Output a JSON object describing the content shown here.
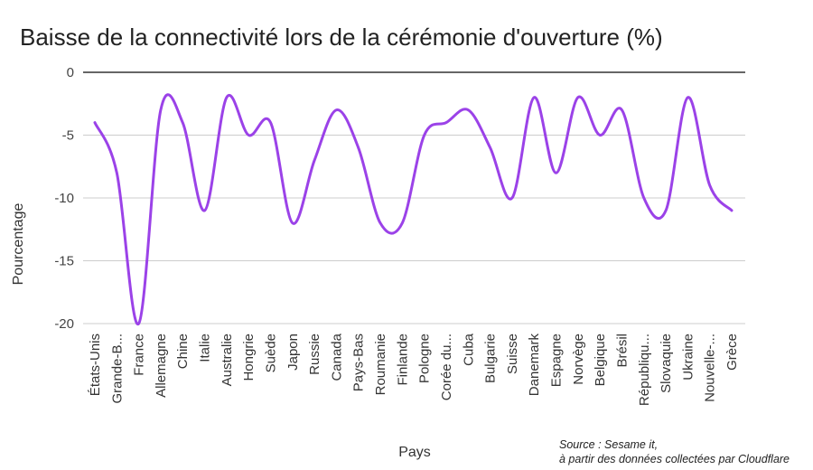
{
  "chart_data": {
    "type": "line",
    "title": "Baisse de la connectivité lors de la cérémonie d'ouverture (%)",
    "xlabel": "Pays",
    "ylabel": "Pourcentage",
    "ylim": [
      -20,
      0
    ],
    "yticks": [
      0,
      -5,
      -10,
      -15,
      -20
    ],
    "grid": true,
    "line_color": "#9B42E8",
    "categories": [
      "États-Unis",
      "Grande-B...",
      "France",
      "Allemagne",
      "Chine",
      "Italie",
      "Australie",
      "Hongrie",
      "Suède",
      "Japon",
      "Russie",
      "Canada",
      "Pays-Bas",
      "Roumanie",
      "Finlande",
      "Pologne",
      "Corée du...",
      "Cuba",
      "Bulgarie",
      "Suisse",
      "Danemark",
      "Espagne",
      "Norvège",
      "Belgique",
      "Brésil",
      "Républiqu...",
      "Slovaquie",
      "Ukraine",
      "Nouvelle-...",
      "Grèce"
    ],
    "values": [
      -4,
      -8,
      -20,
      -3,
      -4,
      -11,
      -2,
      -5,
      -4,
      -12,
      -7,
      -3,
      -6,
      -12,
      -12,
      -5,
      -4,
      -3,
      -6,
      -10,
      -2,
      -8,
      -2,
      -5,
      -3,
      -10,
      -11,
      -2,
      -9,
      -11
    ]
  },
  "source": {
    "line1": "Source : Sesame it,",
    "line2": "à partir des données collectées par Cloudflare"
  }
}
